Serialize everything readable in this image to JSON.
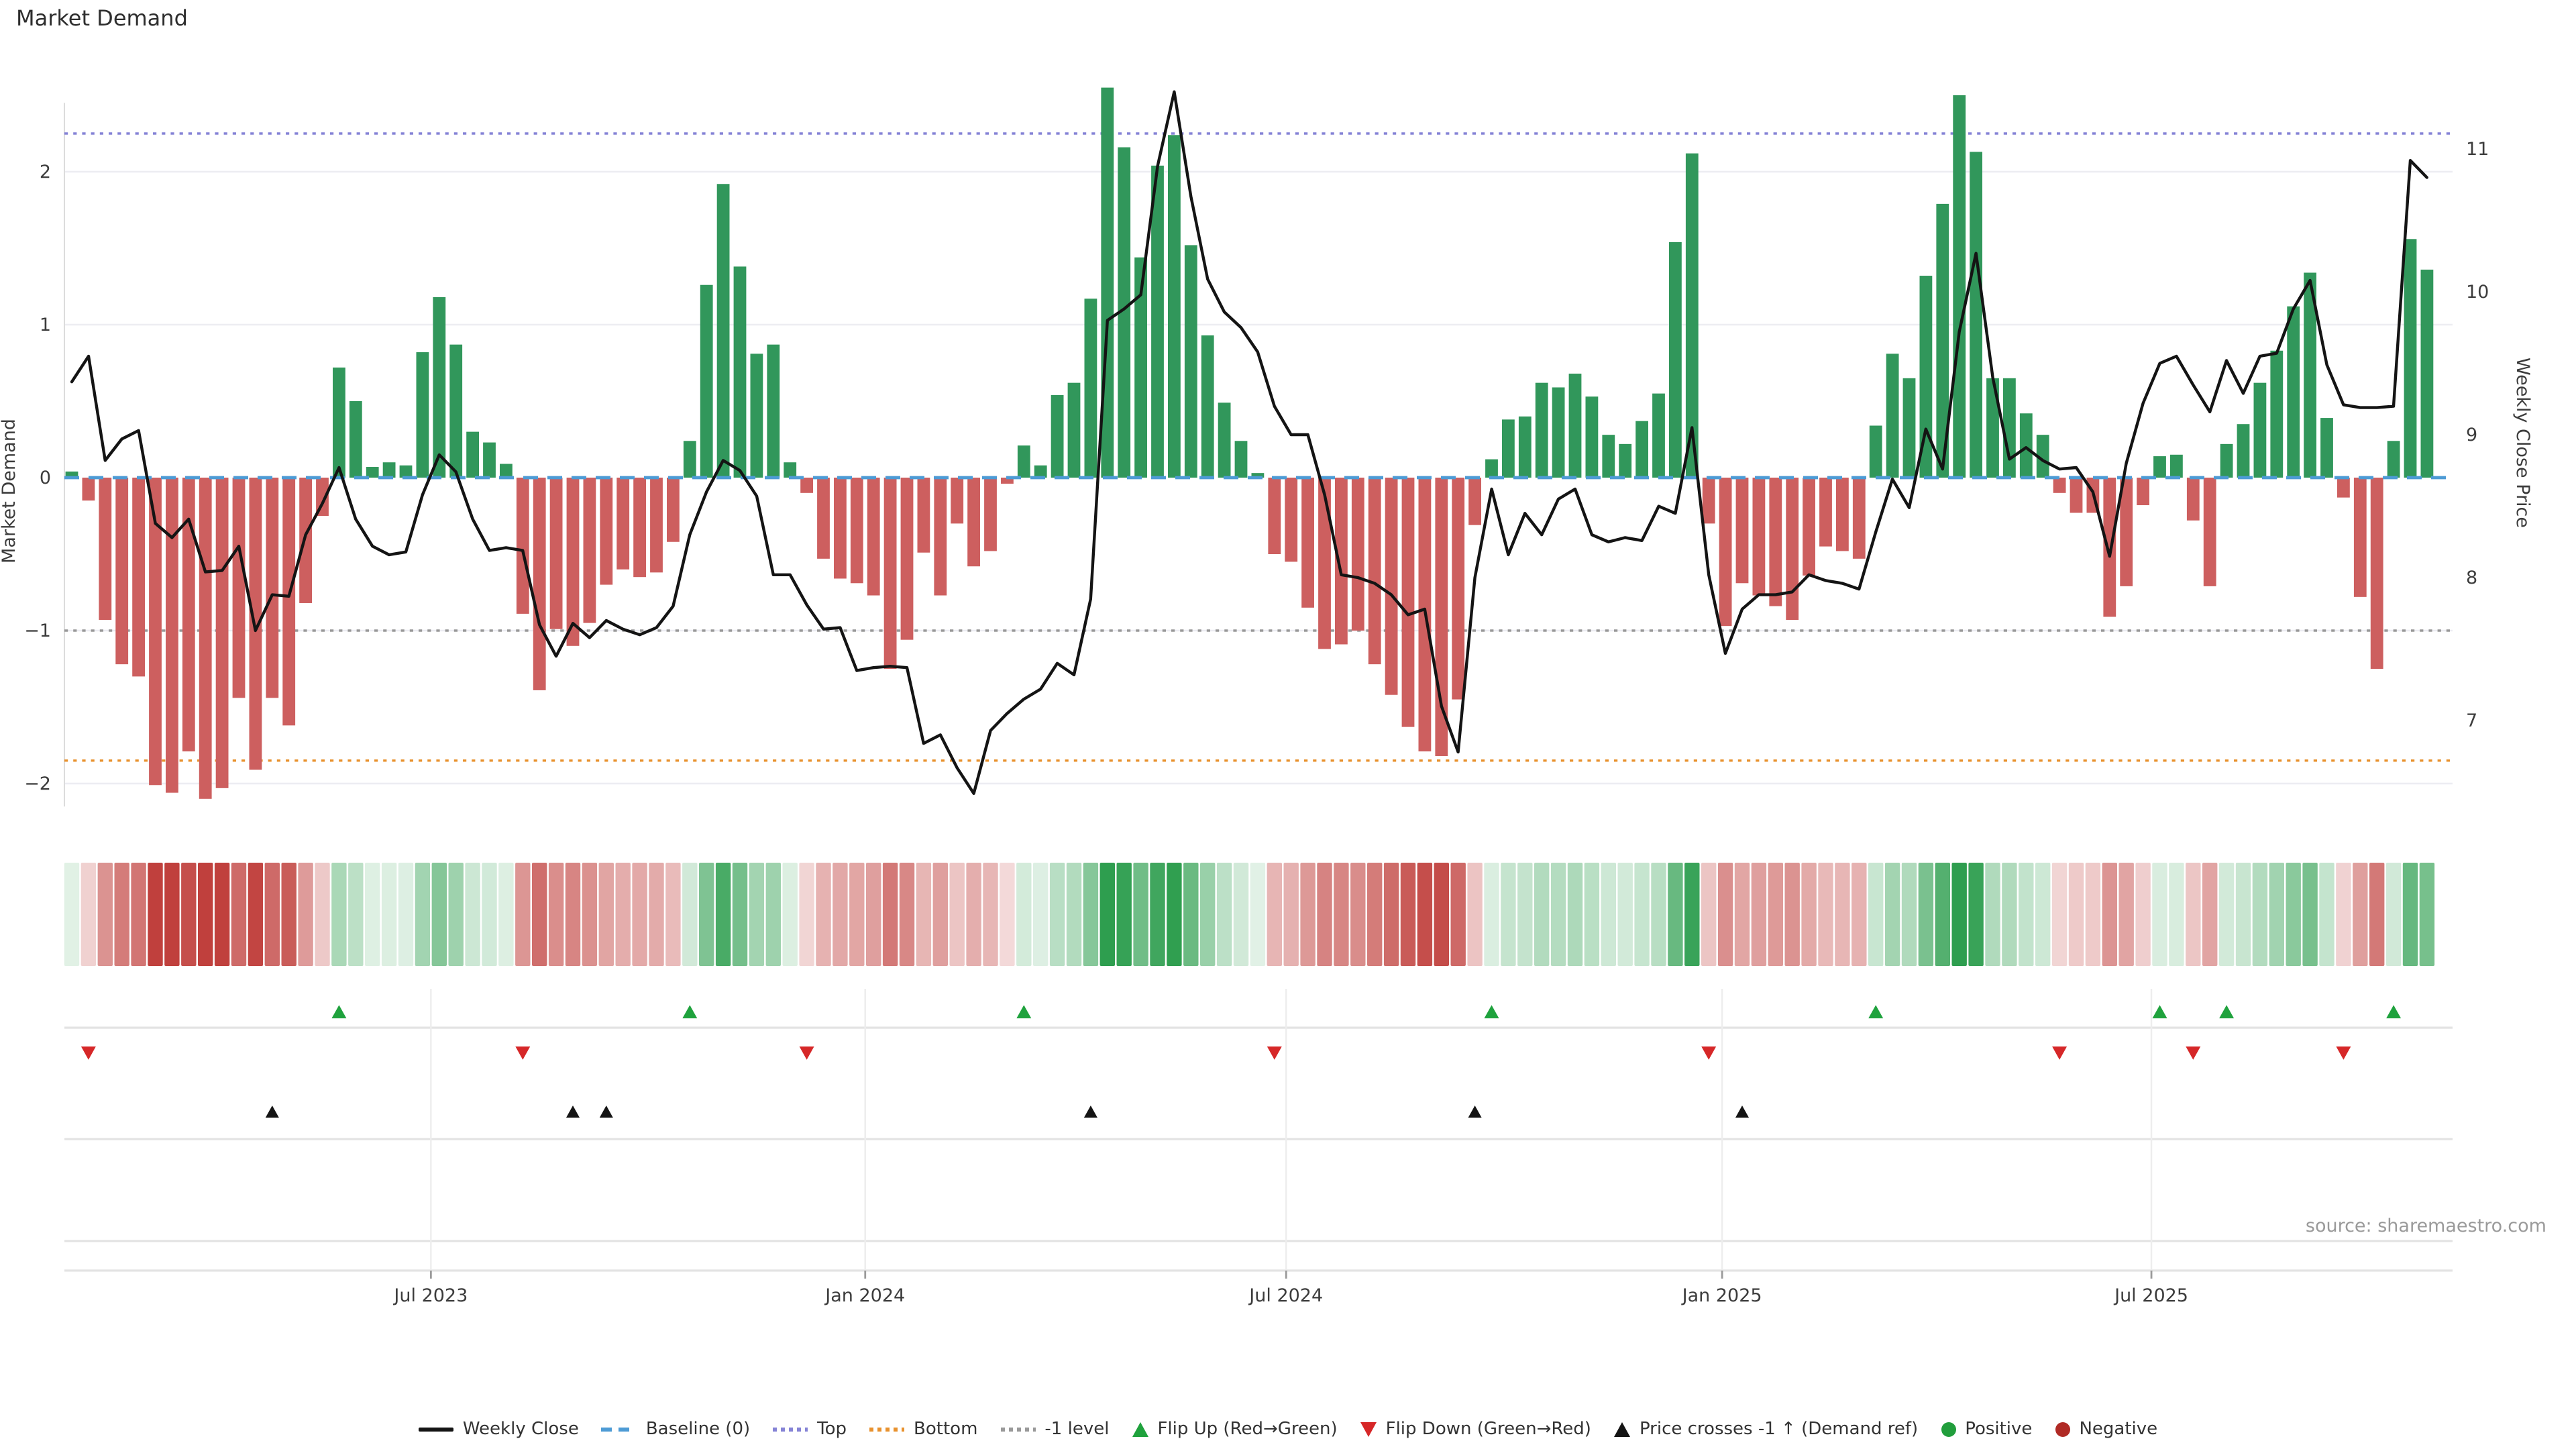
{
  "chart_data": {
    "type": "bar",
    "title": "Market Demand",
    "source": "source: sharemaestro.com",
    "x_start_date": "2023-02-10",
    "frequency": "weekly",
    "left_axis": {
      "label": "Market Demand",
      "ticks": [
        "2",
        "1",
        "0",
        "−1",
        "−2"
      ],
      "tick_values": [
        2,
        1,
        0,
        -1,
        -2
      ]
    },
    "right_axis": {
      "label": "Weekly Close Price",
      "ticks": [
        "11",
        "10",
        "9",
        "8",
        "7"
      ],
      "tick_values": [
        11,
        10,
        9,
        8,
        7
      ]
    },
    "x_axis": {
      "ticks": [
        {
          "label": "Jul 2023",
          "week": 21.5
        },
        {
          "label": "Jan 2024",
          "week": 47.5
        },
        {
          "label": "Jul 2024",
          "week": 72.7
        },
        {
          "label": "Jan 2025",
          "week": 98.8
        },
        {
          "label": "Jul 2025",
          "week": 124.5
        }
      ]
    },
    "reference_lines": {
      "baseline": {
        "label": "Baseline (0)",
        "value": 0
      },
      "top": {
        "label": "Top",
        "value": 2.25
      },
      "bottom": {
        "label": "Bottom",
        "value": -1.85
      },
      "minus1": {
        "label": "-1 level",
        "value": -1.0
      }
    },
    "series": [
      {
        "name": "Market Demand",
        "type": "bar",
        "values": [
          0.04,
          -0.15,
          -0.93,
          -1.22,
          -1.3,
          -2.01,
          -2.06,
          -1.79,
          -2.1,
          -2.03,
          -1.44,
          -1.91,
          -1.44,
          -1.62,
          -0.82,
          -0.25,
          0.72,
          0.5,
          0.07,
          0.1,
          0.08,
          0.82,
          1.18,
          0.87,
          0.3,
          0.23,
          0.09,
          -0.89,
          -1.39,
          -0.99,
          -1.1,
          -0.95,
          -0.7,
          -0.6,
          -0.65,
          -0.62,
          -0.42,
          0.24,
          1.26,
          1.92,
          1.38,
          0.81,
          0.87,
          0.1,
          -0.1,
          -0.53,
          -0.66,
          -0.69,
          -0.77,
          -1.25,
          -1.06,
          -0.49,
          -0.77,
          -0.3,
          -0.58,
          -0.48,
          -0.04,
          0.21,
          0.08,
          0.54,
          0.62,
          1.17,
          2.55,
          2.16,
          1.44,
          2.04,
          2.24,
          1.52,
          0.93,
          0.49,
          0.24,
          0.03,
          -0.5,
          -0.55,
          -0.85,
          -1.12,
          -1.09,
          -1.0,
          -1.22,
          -1.42,
          -1.63,
          -1.79,
          -1.82,
          -1.45,
          -0.31,
          0.12,
          0.38,
          0.4,
          0.62,
          0.59,
          0.68,
          0.53,
          0.28,
          0.22,
          0.37,
          0.55,
          1.54,
          2.12,
          -0.3,
          -0.97,
          -0.69,
          -0.77,
          -0.84,
          -0.93,
          -0.64,
          -0.45,
          -0.48,
          -0.53,
          0.34,
          0.81,
          0.65,
          1.32,
          1.79,
          2.5,
          2.13,
          0.65,
          0.65,
          0.42,
          0.28,
          -0.1,
          -0.23,
          -0.23,
          -0.91,
          -0.71,
          -0.18,
          0.14,
          0.15,
          -0.28,
          -0.71,
          0.22,
          0.35,
          0.62,
          0.83,
          1.12,
          1.34,
          0.39,
          -0.13,
          -0.78,
          -1.25,
          0.24,
          1.56,
          1.36
        ]
      },
      {
        "name": "Weekly Close",
        "type": "line",
        "values": [
          9.37,
          9.55,
          8.82,
          8.97,
          9.03,
          8.38,
          8.28,
          8.41,
          8.04,
          8.05,
          8.22,
          7.63,
          7.88,
          7.87,
          8.3,
          8.52,
          8.77,
          8.41,
          8.22,
          8.16,
          8.18,
          8.58,
          8.86,
          8.74,
          8.41,
          8.19,
          8.21,
          8.19,
          7.67,
          7.45,
          7.68,
          7.58,
          7.7,
          7.64,
          7.6,
          7.65,
          7.8,
          8.3,
          8.6,
          8.82,
          8.75,
          8.57,
          8.02,
          8.02,
          7.81,
          7.64,
          7.65,
          7.35,
          7.37,
          7.38,
          7.37,
          6.84,
          6.9,
          6.67,
          6.49,
          6.93,
          7.05,
          7.15,
          7.22,
          7.4,
          7.32,
          7.85,
          9.8,
          9.88,
          9.98,
          10.88,
          11.4,
          10.67,
          10.09,
          9.86,
          9.75,
          9.58,
          9.2,
          9.0,
          9.0,
          8.58,
          8.02,
          8.0,
          7.96,
          7.88,
          7.74,
          7.78,
          7.1,
          6.78,
          8.0,
          8.62,
          8.16,
          8.45,
          8.3,
          8.55,
          8.62,
          8.3,
          8.25,
          8.28,
          8.26,
          8.5,
          8.45,
          9.05,
          8.02,
          7.47,
          7.78,
          7.88,
          7.88,
          7.9,
          8.02,
          7.98,
          7.96,
          7.92,
          8.32,
          8.69,
          8.49,
          9.04,
          8.76,
          9.72,
          10.27,
          9.4,
          8.83,
          8.91,
          8.82,
          8.76,
          8.77,
          8.6,
          8.15,
          8.8,
          9.22,
          9.5,
          9.55,
          9.35,
          9.16,
          9.52,
          9.29,
          9.55,
          9.57,
          9.88,
          10.08,
          9.49,
          9.21,
          9.19,
          9.19,
          9.2,
          10.92,
          10.8
        ]
      }
    ],
    "markers": {
      "flip_up_weeks": [
        16,
        37,
        57,
        85,
        108,
        125,
        129,
        139
      ],
      "flip_down_weeks": [
        1,
        27,
        44,
        72,
        98,
        119,
        127,
        136
      ],
      "price_cross_weeks": [
        12,
        30,
        32,
        61,
        84,
        100
      ]
    },
    "heatmap": {
      "note": "demand value mapped to red-green intensity strip"
    }
  },
  "colors": {
    "bar_pos": "#31975B",
    "bar_neg": "#CD5F5F",
    "price_line": "#141414",
    "baseline": "#4D9BD5",
    "top": "#8583D6",
    "bottom": "#E8912D",
    "minus1": "#999999",
    "grid": "#EDEDF2",
    "spine": "#DCDCDC",
    "divider": "#E3E3E3",
    "axis_text": "#3C3C3C",
    "heat_pos": "#2E9E4F",
    "heat_neg": "#C0403D",
    "flip_up": "#1FA23D",
    "flip_down": "#D62728",
    "cross": "#141414",
    "positive_dot": "#219E3C",
    "negative_dot": "#B02A25"
  },
  "legend": {
    "items": [
      {
        "label": "Weekly Close",
        "type": "line",
        "color": "#141414"
      },
      {
        "label": "Baseline (0)",
        "type": "dash",
        "color": "#4D9BD5"
      },
      {
        "label": "Top",
        "type": "dot",
        "color": "#8583D6"
      },
      {
        "label": "Bottom",
        "type": "dot",
        "color": "#E8912D"
      },
      {
        "label": "-1 level",
        "type": "dot",
        "color": "#999999"
      },
      {
        "label": "Flip Up (Red→Green)",
        "type": "tri-up",
        "color": "#1FA23D"
      },
      {
        "label": "Flip Down (Green→Red)",
        "type": "tri-down",
        "color": "#D62728"
      },
      {
        "label": "Price crosses -1 ↑ (Demand ref)",
        "type": "tri-up",
        "color": "#141414"
      },
      {
        "label": "Positive",
        "type": "circle",
        "color": "#219E3C"
      },
      {
        "label": "Negative",
        "type": "circle",
        "color": "#B02A25"
      }
    ]
  }
}
